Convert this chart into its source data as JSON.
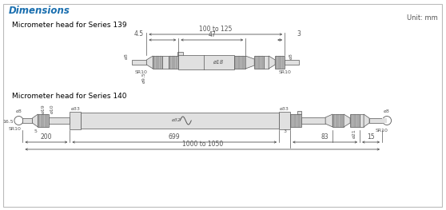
{
  "title": "Dimensions",
  "unit_text": "Unit: mm",
  "series139_label": "Micrometer head for Series 139",
  "series140_label": "Micrometer head for Series 140",
  "bg_color": "#ffffff",
  "border_color": "#bbbbbb",
  "title_color": "#1a6faf",
  "line_color": "#555555",
  "dim_color": "#555555",
  "fill_light": "#e0e0e0",
  "fill_med": "#c8c8c8",
  "fill_dark": "#aaaaaa",
  "fill_knurl": "#b8b8b8"
}
